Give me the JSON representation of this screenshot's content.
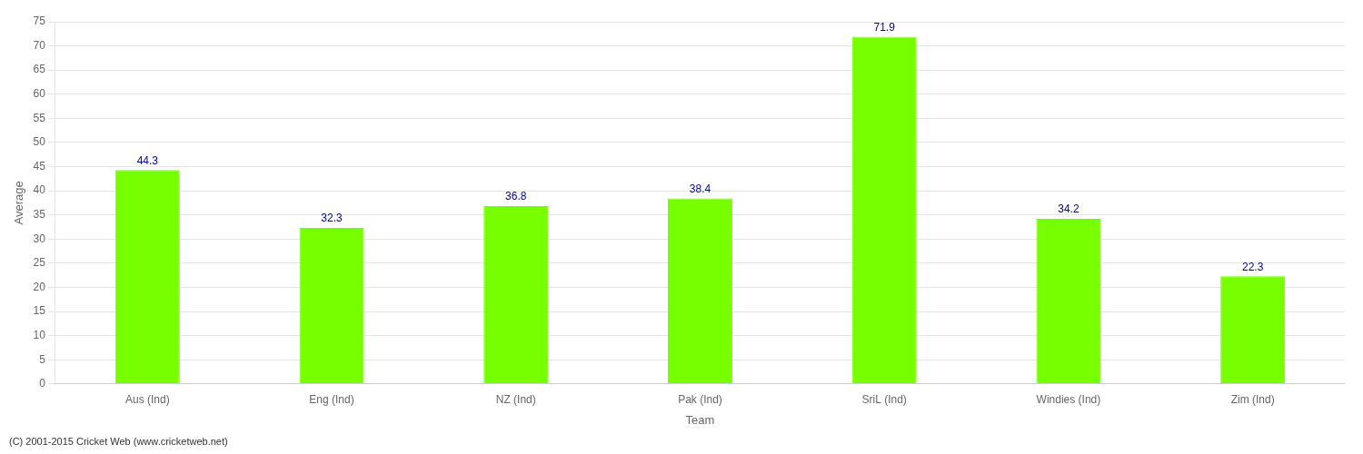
{
  "chart_data": {
    "type": "bar",
    "xlabel": "Team",
    "ylabel": "Average",
    "footnote": "(C) 2001-2015 Cricket Web (www.cricketweb.net)",
    "categories": [
      "Aus (Ind)",
      "Eng (Ind)",
      "NZ (Ind)",
      "Pak (Ind)",
      "SriL (Ind)",
      "Windies (Ind)",
      "Zim (Ind)"
    ],
    "values": [
      44.3,
      32.3,
      36.8,
      38.4,
      71.9,
      34.2,
      22.3
    ],
    "color": "#77ff00",
    "ylim": [
      0,
      75
    ],
    "yticks": [
      0,
      5,
      10,
      15,
      20,
      25,
      30,
      35,
      40,
      45,
      50,
      55,
      60,
      65,
      70,
      75
    ],
    "grid": true,
    "data_labels": true
  }
}
